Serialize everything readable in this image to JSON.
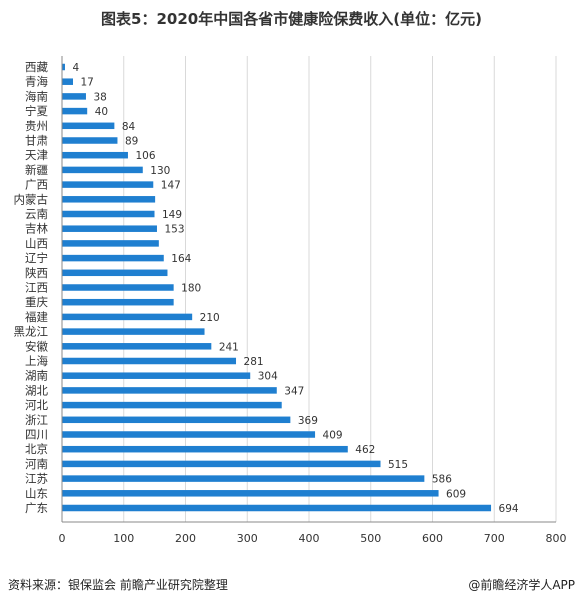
{
  "title": "图表5：2020年中国各省市健康险保费收入(单位：亿元)",
  "source": "资料来源：银保监会 前瞻产业研究院整理",
  "credit": "@前瞻经济学人APP",
  "colors": {
    "bar": "#1f7fd0",
    "grid": "#d9d9d9",
    "axis": "#888888",
    "text": "#333333"
  },
  "chart_data": {
    "type": "bar",
    "orientation": "horizontal",
    "categories": [
      "西藏",
      "青海",
      "海南",
      "宁夏",
      "贵州",
      "甘肃",
      "天津",
      "新疆",
      "广西",
      "内蒙古",
      "云南",
      "吉林",
      "山西",
      "辽宁",
      "陕西",
      "江西",
      "重庆",
      "福建",
      "黑龙江",
      "安徽",
      "上海",
      "湖南",
      "湖北",
      "河北",
      "浙江",
      "四川",
      "北京",
      "河南",
      "江苏",
      "山东",
      "广东"
    ],
    "values": [
      4,
      17,
      38,
      40,
      84,
      89,
      106,
      130,
      147,
      150,
      149,
      153,
      156,
      164,
      170,
      180,
      180,
      210,
      230,
      241,
      281,
      304,
      347,
      355,
      369,
      409,
      462,
      515,
      586,
      609,
      694
    ],
    "labels": [
      "4",
      "17",
      "38",
      "40",
      "84",
      "89",
      "106",
      "130",
      "147",
      "",
      "149",
      "153",
      "",
      "164",
      "",
      "180",
      "",
      "210",
      "",
      "241",
      "281",
      "304",
      "347",
      "",
      "369",
      "409",
      "462",
      "515",
      "586",
      "609",
      "694"
    ],
    "xlim": [
      0,
      800
    ],
    "xticks": [
      "0",
      "100",
      "200",
      "300",
      "400",
      "500",
      "600",
      "700",
      "800"
    ],
    "grid": true
  }
}
